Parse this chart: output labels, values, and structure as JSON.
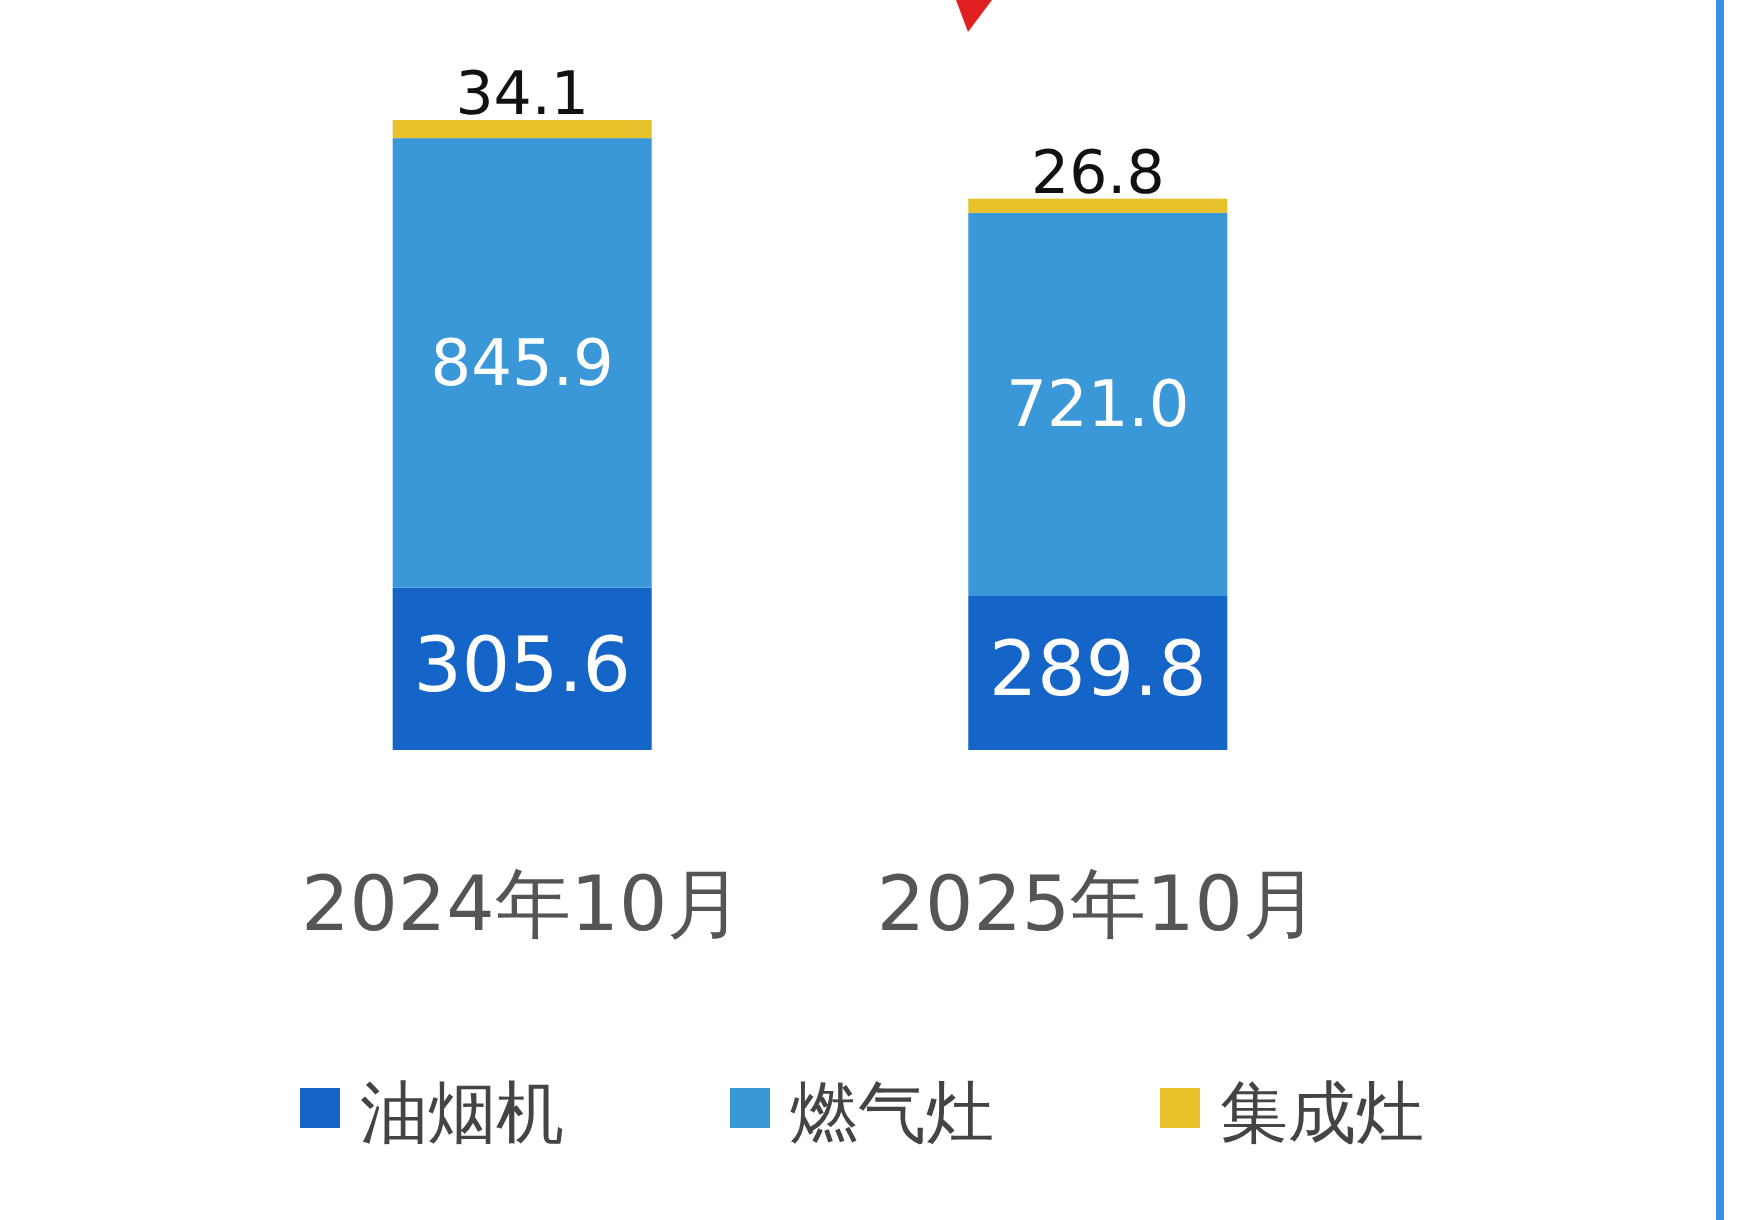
{
  "chart_data": {
    "type": "bar",
    "stacked": true,
    "data_labels": true,
    "legend": "bottom",
    "categories": [
      "2024年10月",
      "2025年10月"
    ],
    "series": [
      {
        "name": "油烟机",
        "color": "#1565c8",
        "values": [
          305.6,
          289.8
        ]
      },
      {
        "name": "燃气灶",
        "color": "#3a98d8",
        "values": [
          845.9,
          721.0
        ],
        "value_labels": [
          "845.9",
          "721.0"
        ]
      },
      {
        "name": "集成灶",
        "color": "#e8c22a",
        "values": [
          34.1,
          26.8
        ]
      }
    ]
  }
}
